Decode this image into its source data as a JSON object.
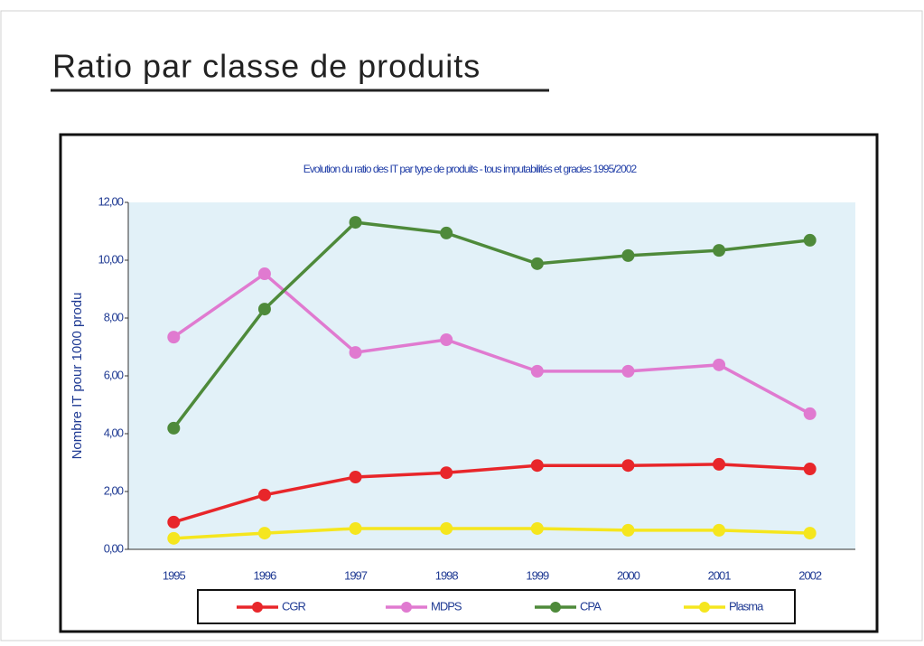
{
  "header": {
    "title": "Ratio par classe de produits"
  },
  "chart_data": {
    "type": "line",
    "title": "Evolution du ratio des IT par type de produits -  tous imputabilités et grades 1995/2002",
    "ylabel": "Nombre IT pour 1000 produ",
    "categories": [
      "1995",
      "1996",
      "1997",
      "1998",
      "1999",
      "2000",
      "2001",
      "2002"
    ],
    "series": [
      {
        "name": "CGR",
        "color": "#e8262a",
        "values": [
          0.94,
          1.88,
          2.5,
          2.65,
          2.9,
          2.9,
          2.94,
          2.78
        ]
      },
      {
        "name": "MDPS",
        "color": "#e07ad0",
        "values": [
          7.34,
          9.53,
          6.81,
          7.25,
          6.16,
          6.16,
          6.38,
          4.69
        ]
      },
      {
        "name": "CPA",
        "color": "#4e8a3a",
        "values": [
          4.19,
          8.31,
          11.31,
          10.94,
          9.88,
          10.16,
          10.34,
          10.69
        ]
      },
      {
        "name": "Plasma",
        "color": "#f5e61e",
        "values": [
          0.38,
          0.56,
          0.72,
          0.72,
          0.72,
          0.66,
          0.66,
          0.56
        ]
      }
    ],
    "ylim": [
      0,
      12
    ],
    "yticks": [
      {
        "value": 0,
        "label": "0,00"
      },
      {
        "value": 2,
        "label": "2,00"
      },
      {
        "value": 4,
        "label": "4,00"
      },
      {
        "value": 6,
        "label": "6,00"
      },
      {
        "value": 8,
        "label": "8,00"
      },
      {
        "value": 10,
        "label": "10,00"
      },
      {
        "value": 12,
        "label": "12,00"
      }
    ],
    "grid": false,
    "legend": "bottom"
  }
}
